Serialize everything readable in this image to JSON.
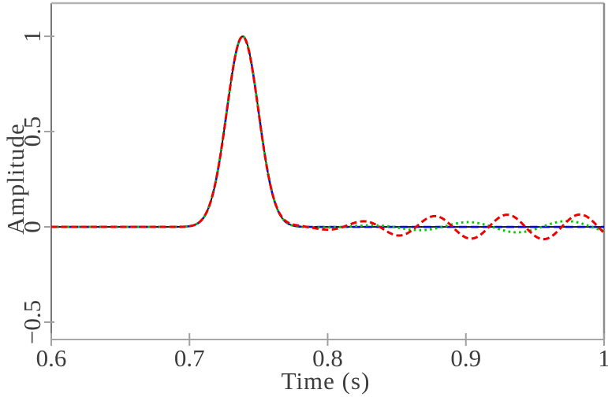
{
  "figure": {
    "description": "Waveform comparison plot: Gaussian pulse with trailing numerical-dispersion oscillations"
  },
  "chart_data": {
    "type": "line",
    "title": "",
    "xlabel": "Time (s)",
    "ylabel": "Amplitude",
    "xlim": [
      0.6,
      1.0
    ],
    "ylim": [
      -0.591,
      1.174
    ],
    "grid": false,
    "legend": "none",
    "xticks": [
      0.6,
      0.7,
      0.8,
      0.9,
      1.0
    ],
    "xtick_labels": [
      "0.6",
      "0.7",
      "0.8",
      "0.9",
      "1"
    ],
    "yticks": [
      1,
      0.5,
      0,
      -0.5
    ],
    "ytick_labels": [
      "1",
      "0.5",
      "0",
      "−0.5"
    ],
    "frame_colors": {
      "left": "#777777",
      "bottom": "#a6a6a6",
      "top": "#b3b3b3",
      "right": "#8c8c8c",
      "tick": "#a0a0a0"
    },
    "pulse": {
      "peak_time": 0.7385,
      "peak_amplitude": 1.0,
      "sigma": 0.0115
    },
    "sampling": {
      "t_start": 0.6,
      "t_end": 1.0,
      "dt": 0.001
    },
    "series": [
      {
        "name": "reference-solid-black",
        "color": "#000000",
        "width": 1.8,
        "dash": [],
        "osc": null
      },
      {
        "name": "blue-long-dashed",
        "color": "#0000ee",
        "width": 2.6,
        "dash": [
          10,
          5
        ],
        "osc": null
      },
      {
        "name": "green-dotted",
        "color": "#00cc00",
        "width": 3.0,
        "dash": [
          2.6,
          4.2
        ],
        "osc": {
          "period": 0.072,
          "phase": 0.811,
          "cap": 0.031,
          "env_center": 0.86,
          "env_k": 0.03
        }
      },
      {
        "name": "red-dashed",
        "color": "#ee0000",
        "width": 3.0,
        "dash": [
          8,
          4.5
        ],
        "osc": {
          "period": 0.0527,
          "phase": 0.8113,
          "cap": 0.065,
          "env_center": 0.83,
          "env_k": 0.025
        }
      }
    ],
    "red_oscillation_extrema": [
      [
        0.798,
        -0.015
      ],
      [
        0.824,
        0.033
      ],
      [
        0.85,
        -0.037
      ],
      [
        0.876,
        0.054
      ],
      [
        0.902,
        -0.058
      ],
      [
        0.929,
        0.062
      ],
      [
        0.955,
        -0.062
      ],
      [
        0.981,
        0.066
      ]
    ],
    "green_oscillation_extrema": [
      [
        0.829,
        0.012
      ],
      [
        0.865,
        -0.018
      ],
      [
        0.901,
        0.028
      ],
      [
        0.937,
        -0.029
      ],
      [
        0.973,
        0.03
      ]
    ]
  }
}
